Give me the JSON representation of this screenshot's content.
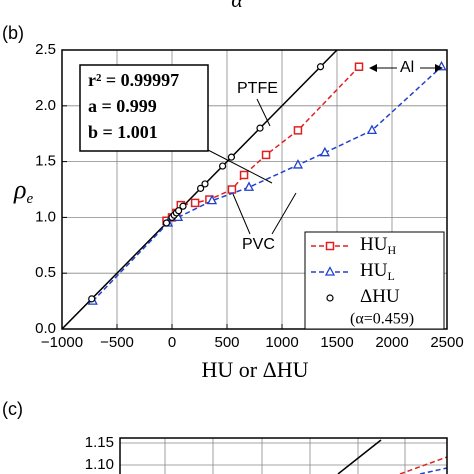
{
  "top_label": "α",
  "chart_data": [
    {
      "type": "line",
      "panel_label": "(b)",
      "x_label": "HU or ΔHU",
      "y_label": "ρ",
      "y_label_sub": "e",
      "xlim": [
        -1000,
        2500
      ],
      "xticks": [
        {
          "value": -1000,
          "label": "−1000"
        },
        {
          "value": -500,
          "label": "−500"
        },
        0,
        500,
        1000,
        1500,
        2000,
        2500
      ],
      "ylim": [
        0,
        2.5
      ],
      "yticks": [
        {
          "value": 0,
          "label": "0.0"
        },
        0.5,
        {
          "value": 1,
          "label": "1.0"
        },
        1.5,
        {
          "value": 2,
          "label": "2.0"
        },
        2.5
      ],
      "grid": true,
      "series": [
        {
          "color": "#000000",
          "marker": "none",
          "dash": false,
          "x": [
            -1000,
            1500
          ],
          "values": [
            0,
            2.5
          ]
        },
        {
          "name": "HU",
          "name_sub": "H",
          "color": "#e02020",
          "marker": "square",
          "dash": true,
          "x": [
            -50,
            0,
            40,
            80,
            210,
            340,
            545,
            655,
            855,
            1145,
            1700
          ],
          "values": [
            0.97,
            1.0,
            1.04,
            1.11,
            1.13,
            1.16,
            1.25,
            1.38,
            1.56,
            1.78,
            2.35
          ]
        },
        {
          "name": "HU",
          "name_sub": "L",
          "color": "#2040d0",
          "marker": "triangle",
          "dash": true,
          "x": [
            -720,
            -36,
            55,
            364,
            700,
            1145,
            1390,
            1818,
            2450
          ],
          "values": [
            0.25,
            0.95,
            1.0,
            1.15,
            1.27,
            1.47,
            1.58,
            1.78,
            2.35
          ]
        },
        {
          "name": "ΔHU",
          "name_note": "(α=0.459)",
          "color": "#000000",
          "marker": "circle",
          "dash": false,
          "line": false,
          "x": [
            -730,
            -50,
            0,
            20,
            40,
            60,
            100,
            260,
            300,
            460,
            540,
            800,
            1350
          ],
          "values": [
            0.27,
            0.95,
            1.0,
            1.02,
            1.04,
            1.06,
            1.1,
            1.26,
            1.3,
            1.46,
            1.54,
            1.8,
            2.35
          ]
        }
      ],
      "fit_box": [
        "r² = 0.99997",
        "a = 0.999",
        "b = 1.001"
      ],
      "annotations": [
        "PTFE",
        "Al",
        "PVC"
      ]
    },
    {
      "type": "line",
      "panel_label": "(c)",
      "ylim": [
        1.1,
        1.15
      ],
      "yticks": [
        1.1,
        1.15
      ],
      "yticks_labels": [
        "1.10",
        "1.15"
      ]
    }
  ]
}
